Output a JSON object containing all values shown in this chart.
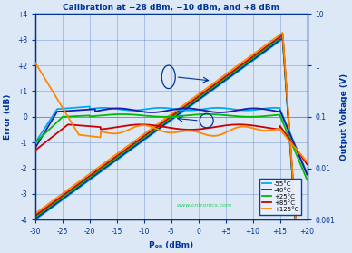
{
  "title": "Calibration at −28 dBm, −10 dBm, and +8 dBm",
  "xlabel": "Pₒₙ (dBm)",
  "ylabel_left": "Error (dB)",
  "ylabel_right": "Output Voltage (V)",
  "x_min": -30,
  "x_max": 20,
  "y_left_min": -4,
  "y_left_max": 4,
  "y_right_min_log": -3,
  "y_right_max_log": 1,
  "background_color": "#dce8f5",
  "grid_color": "#4472c4",
  "title_color": "#003399",
  "axis_color": "#003399",
  "temperatures": [
    "-55°C",
    "-40°C",
    "+25°C",
    "+85°C",
    "+125°C"
  ],
  "line_colors": [
    "#00aaee",
    "#1a1aaa",
    "#00bb00",
    "#cc0000",
    "#ff8800"
  ],
  "watermark": "www.cntronics.com",
  "watermark_color": "#00cc44",
  "x_ticks": [
    -30,
    -25,
    -20,
    -15,
    -10,
    -5,
    0,
    5,
    10,
    15,
    20
  ],
  "x_tick_labels": [
    "-30",
    "-25",
    "-20",
    "-15",
    "-10",
    "-5",
    "0",
    "+5",
    "+10",
    "+15",
    "+20"
  ],
  "y_left_ticks": [
    -4,
    -3,
    -2,
    -1,
    0,
    1,
    2,
    3,
    4
  ],
  "y_left_labels": [
    "-4",
    "-3",
    "-2",
    "-1",
    "0",
    "+1",
    "+2",
    "+3",
    "+4"
  ],
  "y_right_ticks": [
    0.001,
    0.01,
    0.1,
    1,
    10
  ],
  "y_right_labels": [
    "0.001",
    "0.01",
    "0.1",
    "1",
    "10"
  ]
}
